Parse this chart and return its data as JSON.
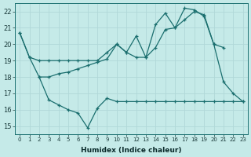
{
  "xlabel": "Humidex (Indice chaleur)",
  "background_color": "#c5eae8",
  "line_color": "#1a6e6e",
  "grid_color": "#b0d8d8",
  "xlim": [
    -0.5,
    23.5
  ],
  "ylim": [
    14.5,
    22.5
  ],
  "yticks": [
    15,
    16,
    17,
    18,
    19,
    20,
    21,
    22
  ],
  "xticks": [
    0,
    1,
    2,
    3,
    4,
    5,
    6,
    7,
    8,
    9,
    10,
    11,
    12,
    13,
    14,
    15,
    16,
    17,
    18,
    19,
    20,
    21,
    22,
    23
  ],
  "line1_x": [
    0,
    1,
    2,
    3,
    4,
    5,
    6,
    7,
    8,
    9,
    10,
    11,
    12,
    13,
    14,
    15,
    16,
    17,
    18,
    19,
    20,
    21,
    22,
    23
  ],
  "line1_y": [
    20.7,
    19.2,
    19.0,
    19.0,
    19.0,
    19.0,
    19.0,
    19.0,
    19.0,
    19.5,
    20.0,
    19.5,
    19.2,
    19.2,
    19.8,
    20.9,
    21.0,
    21.5,
    22.0,
    21.8,
    20.0,
    19.8,
    null,
    null
  ],
  "line2_x": [
    0,
    1,
    2,
    3,
    4,
    5,
    6,
    7,
    8,
    9,
    10,
    11,
    12,
    13,
    14,
    15,
    16,
    17,
    18,
    19,
    20,
    21,
    22,
    23
  ],
  "line2_y": [
    20.7,
    19.2,
    18.0,
    18.0,
    18.2,
    18.3,
    18.5,
    18.7,
    18.9,
    19.1,
    20.0,
    19.5,
    20.5,
    19.2,
    21.2,
    21.9,
    21.0,
    22.2,
    22.1,
    21.7,
    20.0,
    17.7,
    17.0,
    16.5
  ],
  "line3_x": [
    2,
    3,
    4,
    5,
    6,
    7,
    8,
    9,
    10,
    11,
    12,
    13,
    14,
    15,
    16,
    17,
    18,
    19,
    20,
    21,
    22,
    23
  ],
  "line3_y": [
    18.0,
    16.6,
    16.3,
    16.0,
    15.8,
    14.9,
    16.1,
    16.7,
    16.5,
    16.5,
    16.5,
    16.5,
    16.5,
    16.5,
    16.5,
    16.5,
    16.5,
    16.5,
    16.5,
    16.5,
    16.5,
    16.5
  ]
}
